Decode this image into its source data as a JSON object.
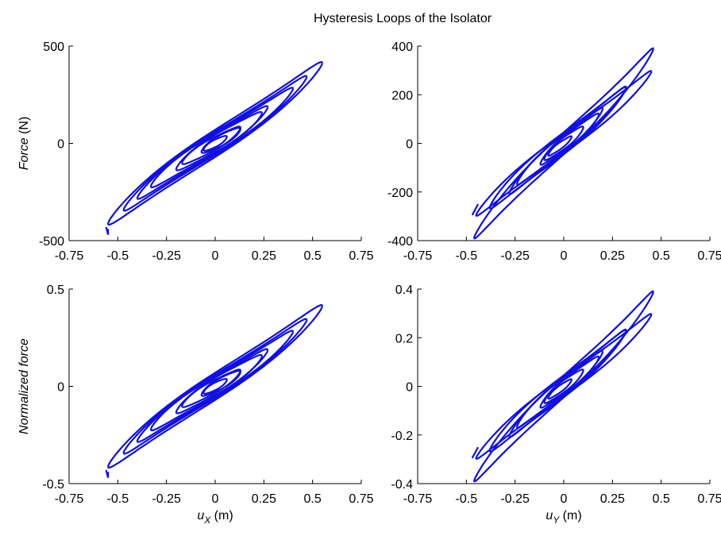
{
  "figure": {
    "title": "Hysteresis Loops of the Isolator",
    "colors": {
      "series": "#1010e0",
      "axes": "#000000",
      "background": "#ffffff"
    }
  },
  "chart_data": [
    {
      "type": "line",
      "panel": "top-left",
      "xlabel": "",
      "ylabel": "Force (N)",
      "ylabel_parts": {
        "name": "Force",
        "unit": " (N)"
      },
      "xlim": [
        -0.75,
        0.75
      ],
      "ylim": [
        -500,
        500
      ],
      "xticks": [
        "-0.75",
        "-0.5",
        "-0.25",
        "0",
        "0.25",
        "0.5",
        "0.75"
      ],
      "yticks": [
        "-500",
        "0",
        "500"
      ],
      "grid": false,
      "series": [
        {
          "loops": [
            {
              "amp": 0.55,
              "k": 640,
              "c": 0.0,
              "h": 70
            },
            {
              "amp": 0.47,
              "k": 620,
              "c": 0.0,
              "h": 60
            },
            {
              "amp": 0.4,
              "k": 600,
              "c": 0.0,
              "h": 55
            },
            {
              "amp": 0.3,
              "k": 580,
              "c": -0.03,
              "h": 50
            },
            {
              "amp": 0.22,
              "k": 560,
              "c": 0.02,
              "h": 45
            },
            {
              "amp": 0.15,
              "k": 520,
              "c": -0.02,
              "h": 35
            },
            {
              "amp": 0.1,
              "k": 500,
              "c": 0.03,
              "h": 30
            },
            {
              "amp": 0.06,
              "k": 480,
              "c": 0.0,
              "h": 20
            }
          ],
          "points": [
            [
              -0.55,
              -440
            ],
            [
              -0.55,
              -470
            ],
            [
              -0.56,
              -430
            ]
          ]
        }
      ]
    },
    {
      "type": "line",
      "panel": "top-right",
      "xlabel": "",
      "ylabel": "",
      "xlim": [
        -0.75,
        0.75
      ],
      "ylim": [
        -400,
        400
      ],
      "xticks": [
        "-0.75",
        "-0.5",
        "-0.25",
        "0",
        "0.25",
        "0.5",
        "0.75"
      ],
      "yticks": [
        "-400",
        "-200",
        "0",
        "200",
        "400"
      ],
      "grid": false,
      "series": [
        {
          "loops": [
            {
              "amp": 0.46,
              "k": 720,
              "c": 0.0,
              "h": 45
            },
            {
              "amp": 0.45,
              "k": 560,
              "c": 0.0,
              "h": 40
            },
            {
              "amp": 0.35,
              "k": 600,
              "c": -0.03,
              "h": 45
            },
            {
              "amp": 0.3,
              "k": 620,
              "c": 0.02,
              "h": 40
            },
            {
              "amp": 0.22,
              "k": 600,
              "c": -0.02,
              "h": 35
            },
            {
              "amp": 0.15,
              "k": 580,
              "c": 0.03,
              "h": 30
            },
            {
              "amp": 0.1,
              "k": 560,
              "c": 0.0,
              "h": 25
            },
            {
              "amp": 0.06,
              "k": 540,
              "c": -0.02,
              "h": 15
            }
          ],
          "points": [
            [
              -0.47,
              -295
            ],
            [
              -0.46,
              -280
            ],
            [
              -0.44,
              -250
            ]
          ]
        }
      ]
    },
    {
      "type": "line",
      "panel": "bottom-left",
      "xlabel": "uX (m)",
      "xlabel_parts": {
        "var": "u",
        "sub": "X",
        "unit": " (m)"
      },
      "ylabel": "Normalized force",
      "xlim": [
        -0.75,
        0.75
      ],
      "ylim": [
        -0.5,
        0.5
      ],
      "xticks": [
        "-0.75",
        "-0.5",
        "-0.25",
        "0",
        "0.25",
        "0.5",
        "0.75"
      ],
      "yticks": [
        "-0.5",
        "0",
        "0.5"
      ],
      "grid": false,
      "series": [
        {
          "loops": [
            {
              "amp": 0.55,
              "k": 0.64,
              "c": 0.0,
              "h": 0.07
            },
            {
              "amp": 0.47,
              "k": 0.62,
              "c": 0.0,
              "h": 0.06
            },
            {
              "amp": 0.4,
              "k": 0.6,
              "c": 0.0,
              "h": 0.055
            },
            {
              "amp": 0.3,
              "k": 0.58,
              "c": -0.03,
              "h": 0.05
            },
            {
              "amp": 0.22,
              "k": 0.56,
              "c": 0.02,
              "h": 0.045
            },
            {
              "amp": 0.15,
              "k": 0.52,
              "c": -0.02,
              "h": 0.035
            },
            {
              "amp": 0.1,
              "k": 0.5,
              "c": 0.03,
              "h": 0.03
            },
            {
              "amp": 0.06,
              "k": 0.48,
              "c": 0.0,
              "h": 0.02
            }
          ],
          "points": [
            [
              -0.55,
              -0.44
            ],
            [
              -0.55,
              -0.47
            ],
            [
              -0.56,
              -0.43
            ]
          ]
        }
      ]
    },
    {
      "type": "line",
      "panel": "bottom-right",
      "xlabel": "uY (m)",
      "xlabel_parts": {
        "var": "u",
        "sub": "Y",
        "unit": " (m)"
      },
      "ylabel": "",
      "xlim": [
        -0.75,
        0.75
      ],
      "ylim": [
        -0.4,
        0.4
      ],
      "xticks": [
        "-0.75",
        "-0.5",
        "-0.25",
        "0",
        "0.25",
        "0.5",
        "0.75"
      ],
      "yticks": [
        "-0.4",
        "-0.2",
        "0",
        "0.2",
        "0.4"
      ],
      "grid": false,
      "series": [
        {
          "loops": [
            {
              "amp": 0.46,
              "k": 0.72,
              "c": 0.0,
              "h": 0.045
            },
            {
              "amp": 0.45,
              "k": 0.56,
              "c": 0.0,
              "h": 0.04
            },
            {
              "amp": 0.35,
              "k": 0.6,
              "c": -0.03,
              "h": 0.045
            },
            {
              "amp": 0.3,
              "k": 0.62,
              "c": 0.02,
              "h": 0.04
            },
            {
              "amp": 0.22,
              "k": 0.6,
              "c": -0.02,
              "h": 0.035
            },
            {
              "amp": 0.15,
              "k": 0.58,
              "c": 0.03,
              "h": 0.03
            },
            {
              "amp": 0.1,
              "k": 0.56,
              "c": 0.0,
              "h": 0.025
            },
            {
              "amp": 0.06,
              "k": 0.54,
              "c": -0.02,
              "h": 0.015
            }
          ],
          "points": [
            [
              -0.47,
              -0.295
            ],
            [
              -0.46,
              -0.28
            ],
            [
              -0.44,
              -0.25
            ]
          ]
        }
      ]
    }
  ]
}
